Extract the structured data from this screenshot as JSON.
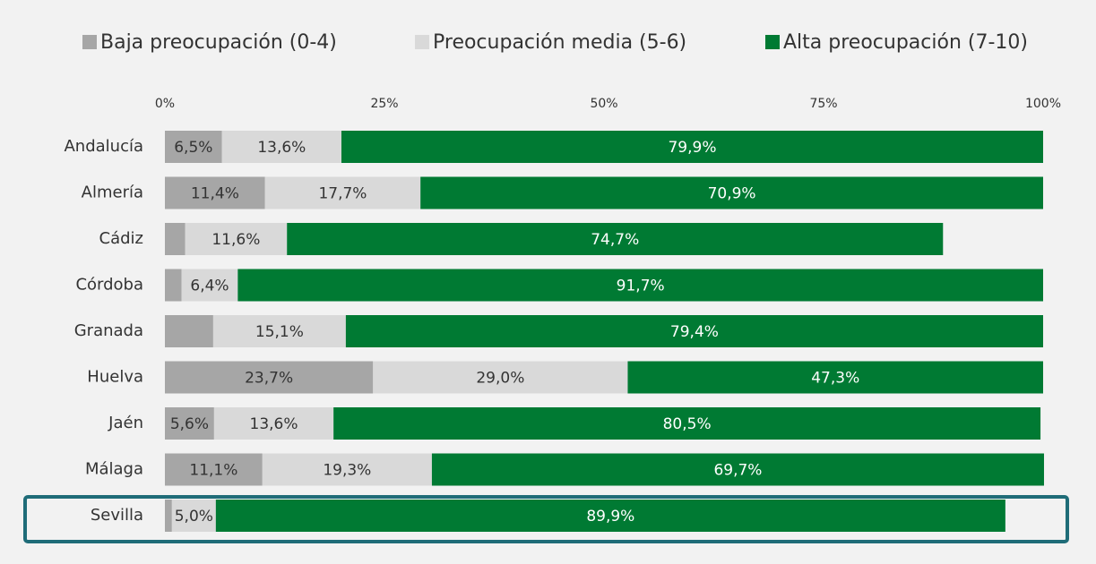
{
  "chart_data": {
    "type": "stacked_bar_horizontal",
    "categories": [
      "Andalucía",
      "Almería",
      "Cádiz",
      "Córdoba",
      "Granada",
      "Huelva",
      "Jaén",
      "Málaga",
      "Sevilla"
    ],
    "series": [
      {
        "name": "Baja preocupación (0-4)",
        "color": "#a6a6a6",
        "label_color": "#333333",
        "values": [
          6.5,
          11.4,
          2.3,
          1.9,
          5.5,
          23.7,
          5.6,
          11.1,
          0.8
        ],
        "value_labels": [
          "6,5%",
          "11,4%",
          null,
          null,
          null,
          "23,7%",
          "5,6%",
          "11,1%",
          null
        ]
      },
      {
        "name": "Preocupación media (5-6)",
        "color": "#d9d9d9",
        "label_color": "#333333",
        "values": [
          13.6,
          17.7,
          11.6,
          6.4,
          15.1,
          29.0,
          13.6,
          19.3,
          5.0
        ],
        "value_labels": [
          "13,6%",
          "17,7%",
          "11,6%",
          "6,4%",
          "15,1%",
          "29,0%",
          "13,6%",
          "19,3%",
          "5,0%"
        ]
      },
      {
        "name": "Alta preocupación (7-10)",
        "color": "#007a33",
        "label_color": "#ffffff",
        "values": [
          79.9,
          70.9,
          74.7,
          91.7,
          79.4,
          47.3,
          80.5,
          69.7,
          89.9
        ],
        "value_labels": [
          "79,9%",
          "70,9%",
          "74,7%",
          "91,7%",
          "79,4%",
          "47,3%",
          "80,5%",
          "69,7%",
          "89,9%"
        ]
      }
    ],
    "xlim": [
      0,
      100
    ],
    "xticks": [
      {
        "value": 0,
        "label": "0%"
      },
      {
        "value": 25,
        "label": "25%"
      },
      {
        "value": 50,
        "label": "50%"
      },
      {
        "value": 75,
        "label": "75%"
      },
      {
        "value": 100,
        "label": "100%"
      }
    ],
    "legend": "top"
  }
}
